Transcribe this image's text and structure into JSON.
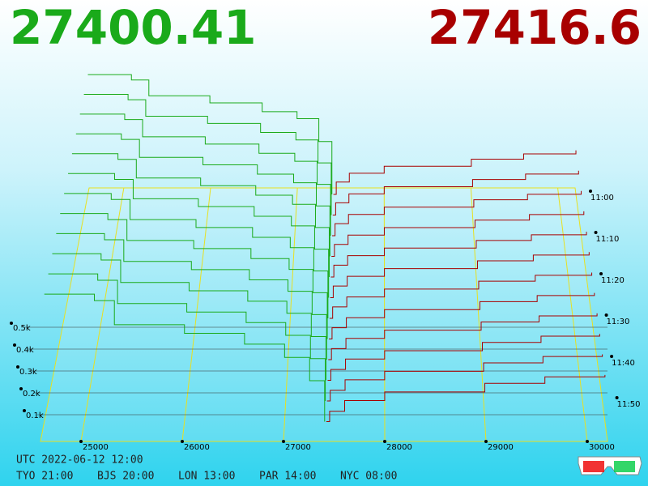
{
  "chart_data": {
    "type": "depth3d",
    "bid_price": "27400.41",
    "ask_price": "27416.6",
    "bid_color": "#1aaa1a",
    "ask_color": "#a80000",
    "floor_color": "#e8e020",
    "xlim": [
      24600,
      30200
    ],
    "xticks": [
      25000,
      26000,
      27000,
      28000,
      29000,
      30000
    ],
    "depth_ticks": [
      {
        "value": 100,
        "label": "0.1k"
      },
      {
        "value": 200,
        "label": "0.2k"
      },
      {
        "value": 300,
        "label": "0.3k"
      },
      {
        "value": 400,
        "label": "0.4k"
      },
      {
        "value": 500,
        "label": "0.5k"
      }
    ],
    "time_ticks": [
      "11:00",
      "11:10",
      "11:20",
      "11:30",
      "11:40",
      "11:50"
    ],
    "bid_prices": [
      24600,
      25100,
      25300,
      26000,
      26600,
      27000,
      27250,
      27400
    ],
    "ask_prices": [
      27417,
      27450,
      27600,
      28000,
      29000,
      29600,
      30200
    ],
    "snapshots": [
      {
        "bids": [
          680,
          650,
          560,
          520,
          470,
          430,
          300,
          0
        ],
        "asks": [
          0,
          70,
          120,
          160,
          200,
          230,
          250
        ]
      },
      {
        "bids": [
          672,
          642,
          550,
          510,
          460,
          418,
          290,
          0
        ],
        "asks": [
          0,
          68,
          118,
          158,
          198,
          228,
          247
        ]
      },
      {
        "bids": [
          664,
          634,
          540,
          500,
          450,
          406,
          280,
          0
        ],
        "asks": [
          0,
          66,
          116,
          156,
          196,
          226,
          244
        ]
      },
      {
        "bids": [
          656,
          626,
          530,
          490,
          440,
          394,
          270,
          0
        ],
        "asks": [
          0,
          64,
          114,
          154,
          194,
          224,
          241
        ]
      },
      {
        "bids": [
          648,
          618,
          520,
          480,
          430,
          382,
          260,
          0
        ],
        "asks": [
          0,
          62,
          112,
          152,
          192,
          222,
          238
        ]
      },
      {
        "bids": [
          640,
          610,
          510,
          470,
          420,
          370,
          250,
          0
        ],
        "asks": [
          0,
          60,
          110,
          150,
          190,
          220,
          235
        ]
      },
      {
        "bids": [
          632,
          602,
          500,
          460,
          410,
          358,
          240,
          0
        ],
        "asks": [
          0,
          58,
          108,
          148,
          188,
          218,
          232
        ]
      },
      {
        "bids": [
          624,
          594,
          490,
          450,
          400,
          346,
          230,
          0
        ],
        "asks": [
          0,
          56,
          106,
          146,
          186,
          216,
          229
        ]
      },
      {
        "bids": [
          616,
          586,
          480,
          440,
          390,
          334,
          220,
          0
        ],
        "asks": [
          0,
          54,
          104,
          144,
          184,
          214,
          226
        ]
      },
      {
        "bids": [
          608,
          578,
          470,
          430,
          380,
          322,
          210,
          0
        ],
        "asks": [
          0,
          52,
          102,
          142,
          182,
          212,
          223
        ]
      },
      {
        "bids": [
          600,
          570,
          460,
          420,
          370,
          310,
          200,
          0
        ],
        "asks": [
          0,
          50,
          100,
          140,
          180,
          210,
          220
        ]
      },
      {
        "bids": [
          592,
          562,
          450,
          410,
          360,
          298,
          190,
          0
        ],
        "asks": [
          0,
          48,
          98,
          138,
          178,
          208,
          217
        ]
      }
    ],
    "footer": {
      "utc": "UTC 2022-06-12 12:00",
      "cities": [
        "TYO 21:00",
        "BJS 20:00",
        "LON 13:00",
        "PAR 14:00",
        "NYC 08:00"
      ]
    }
  }
}
